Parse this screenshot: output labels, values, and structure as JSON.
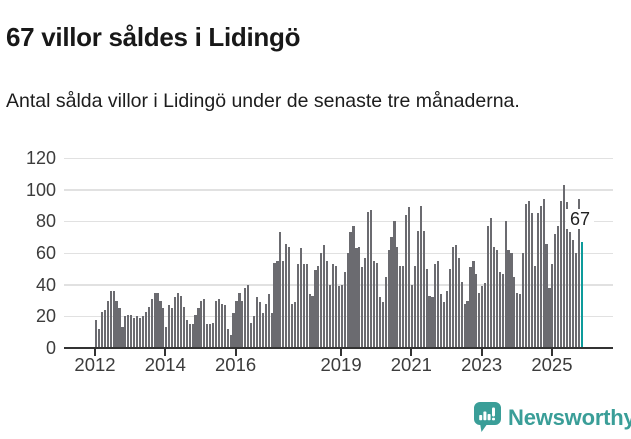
{
  "header": {
    "title": "67 villor såldes i Lidingö",
    "subtitle": "Antal sålda villor i Lidingö under de senaste tre månaderna."
  },
  "chart_data": {
    "type": "bar",
    "title": "67 villor såldes i Lidingö",
    "xlabel": "",
    "ylabel": "",
    "ylim": [
      0,
      120
    ],
    "y_ticks": [
      0,
      20,
      40,
      60,
      80,
      100,
      120
    ],
    "x_tick_years": [
      2012,
      2014,
      2016,
      2019,
      2021,
      2023,
      2025
    ],
    "x_unit": "month",
    "x_start": "2012-01",
    "grid": true,
    "bar_color": "#6b6b70",
    "values": [
      18,
      12,
      23,
      24,
      30,
      36,
      36,
      30,
      25,
      13,
      20,
      21,
      21,
      19,
      20,
      19,
      20,
      23,
      26,
      31,
      35,
      35,
      30,
      25,
      13,
      27,
      25,
      32,
      35,
      33,
      26,
      18,
      15,
      15,
      21,
      25,
      30,
      31,
      15,
      15,
      16,
      30,
      31,
      28,
      27,
      12,
      8,
      22,
      30,
      35,
      30,
      38,
      40,
      16,
      20,
      32,
      29,
      22,
      28,
      34,
      22,
      54,
      55,
      73,
      55,
      66,
      64,
      28,
      29,
      53,
      63,
      53,
      53,
      34,
      33,
      49,
      52,
      60,
      65,
      55,
      40,
      53,
      52,
      39,
      40,
      48,
      60,
      73,
      77,
      63,
      64,
      51,
      57,
      86,
      87,
      55,
      54,
      32,
      29,
      45,
      62,
      70,
      80,
      64,
      52,
      52,
      84,
      89,
      40,
      52,
      74,
      90,
      74,
      50,
      33,
      32,
      53,
      55,
      34,
      29,
      36,
      50,
      64,
      65,
      57,
      42,
      28,
      30,
      51,
      55,
      47,
      35,
      39,
      41,
      77,
      82,
      64,
      62,
      48,
      47,
      80,
      62,
      60,
      45,
      35,
      34,
      60,
      91,
      93,
      85,
      52,
      85,
      90,
      94,
      66,
      38,
      53,
      72,
      77,
      93,
      103,
      92,
      73,
      68,
      60,
      94,
      67
    ],
    "highlight": {
      "label": "67",
      "value": 67,
      "color": "#0d9b9b"
    }
  },
  "footer": {
    "brand": "Newsworthy",
    "brand_color": "#3a9e98",
    "logo_icon": "newsworthy-speech-bubble-bar-chart-icon"
  }
}
